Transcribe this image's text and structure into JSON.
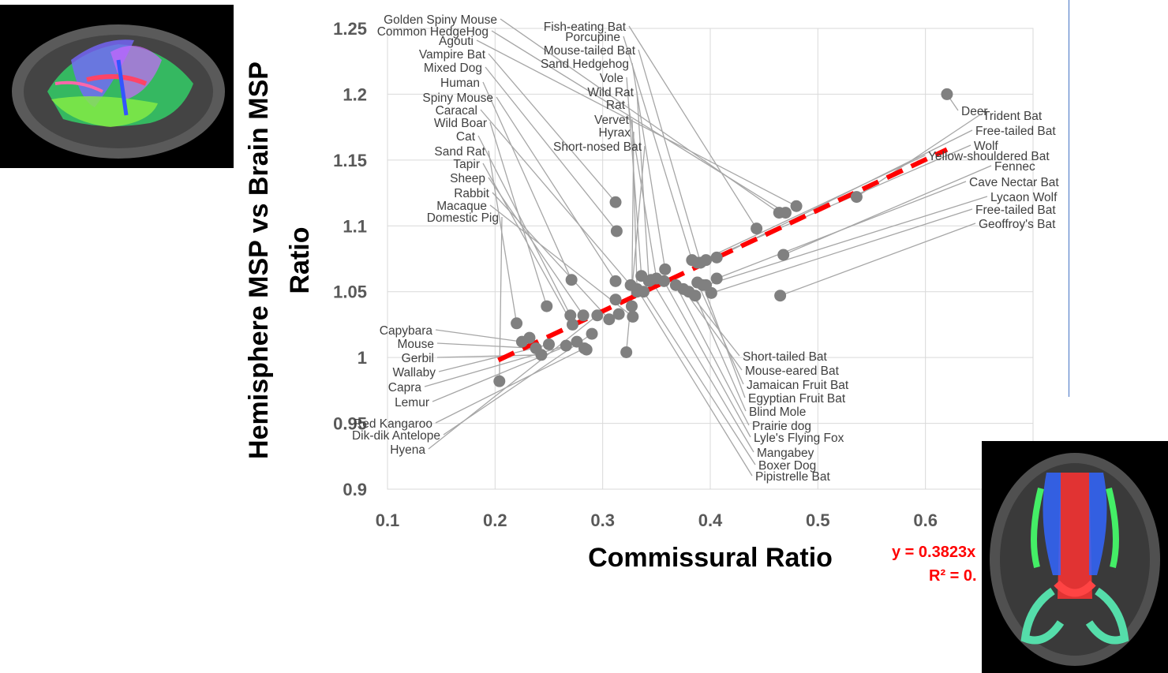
{
  "chart_data": {
    "type": "scatter",
    "title": "",
    "xlabel": "Commissural Ratio",
    "ylabel_line1": "Hemisphere MSP vs Brain MSP",
    "ylabel_line2": "Ratio",
    "xlim": [
      0.1,
      0.7
    ],
    "ylim": [
      0.9,
      1.25
    ],
    "x_ticks": [
      "0.1",
      "0.2",
      "0.3",
      "0.4",
      "0.5",
      "0.6"
    ],
    "y_ticks": [
      "0.9",
      "0.95",
      "1",
      "1.05",
      "1.1",
      "1.15",
      "1.2",
      "1.25"
    ],
    "grid": true,
    "point_color": "#808080",
    "trendline": {
      "style": "dashed",
      "color": "#ff0000",
      "x_range": [
        0.203,
        0.62
      ],
      "y_range": [
        0.998,
        1.158
      ],
      "equation": "y = 0.3823x",
      "r_squared": "R² = 0."
    },
    "points": [
      {
        "name": "Golden Spiny Mouse",
        "x": 0.464,
        "y": 1.11
      },
      {
        "name": "Common HedgeHog",
        "x": 0.47,
        "y": 1.11
      },
      {
        "name": "Agouti",
        "x": 0.48,
        "y": 1.115
      },
      {
        "name": "Vampire Bat",
        "x": 0.312,
        "y": 1.118
      },
      {
        "name": "Mixed Dog",
        "x": 0.313,
        "y": 1.096
      },
      {
        "name": "Human",
        "x": 0.271,
        "y": 1.059
      },
      {
        "name": "Spiny Mouse",
        "x": 0.312,
        "y": 1.058
      },
      {
        "name": "Caracal",
        "x": 0.326,
        "y": 1.055
      },
      {
        "name": "Wild Boar",
        "x": 0.248,
        "y": 1.039
      },
      {
        "name": "Cat",
        "x": 0.27,
        "y": 1.032
      },
      {
        "name": "Sand Rat",
        "x": 0.22,
        "y": 1.026
      },
      {
        "name": "Tapir",
        "x": 0.272,
        "y": 1.025
      },
      {
        "name": "Sheep",
        "x": 0.282,
        "y": 1.032
      },
      {
        "name": "Rabbit",
        "x": 0.306,
        "y": 1.029
      },
      {
        "name": "Macaque",
        "x": 0.328,
        "y": 1.031
      },
      {
        "name": "Domestic Pig",
        "x": 0.204,
        "y": 0.982
      },
      {
        "name": "Fish-eating Bat",
        "x": 0.443,
        "y": 1.098
      },
      {
        "name": "Porcupine",
        "x": 0.383,
        "y": 1.074
      },
      {
        "name": "Mouse-tailed Bat",
        "x": 0.391,
        "y": 1.072
      },
      {
        "name": "Sand Hedgehog",
        "x": 0.358,
        "y": 1.067
      },
      {
        "name": "Vole",
        "x": 0.336,
        "y": 1.062
      },
      {
        "name": "Wild Rat",
        "x": 0.343,
        "y": 1.058
      },
      {
        "name": "Rat",
        "x": 0.35,
        "y": 1.06
      },
      {
        "name": "Vervet",
        "x": 0.332,
        "y": 1.05
      },
      {
        "name": "Hyrax",
        "x": 0.327,
        "y": 1.039
      },
      {
        "name": "Short-nosed Bat",
        "x": 0.322,
        "y": 1.004
      },
      {
        "name": "Deer",
        "x": 0.62,
        "y": 1.2
      },
      {
        "name": "Trident Bat",
        "x": 0.536,
        "y": 1.122
      },
      {
        "name": "Free-tailed Bat",
        "x": 0.406,
        "y": 1.076
      },
      {
        "name": "Wolf",
        "x": 0.396,
        "y": 1.074
      },
      {
        "name": "Yellow-shouldered Bat",
        "x": 0.388,
        "y": 1.072
      },
      {
        "name": "Fennec",
        "x": 0.468,
        "y": 1.078
      },
      {
        "name": "Cave Nectar Bat",
        "x": 0.406,
        "y": 1.06
      },
      {
        "name": "Lycaon Wolf",
        "x": 0.396,
        "y": 1.055
      },
      {
        "name": "Free-tailed Bat",
        "x": 0.401,
        "y": 1.049
      },
      {
        "name": "Geoffroy's Bat",
        "x": 0.465,
        "y": 1.047
      },
      {
        "name": "Capybara",
        "x": 0.225,
        "y": 1.012
      },
      {
        "name": "Mouse",
        "x": 0.238,
        "y": 1.007
      },
      {
        "name": "Gerbil",
        "x": 0.243,
        "y": 1.002
      },
      {
        "name": "Wallaby",
        "x": 0.25,
        "y": 1.01
      },
      {
        "name": "Capra",
        "x": 0.266,
        "y": 1.009
      },
      {
        "name": "Lemur",
        "x": 0.276,
        "y": 1.012
      },
      {
        "name": "Red Kangaroo",
        "x": 0.283,
        "y": 1.007
      },
      {
        "name": "Dik-dik Antelope",
        "x": 0.29,
        "y": 1.018
      },
      {
        "name": "Hyena",
        "x": 0.295,
        "y": 1.032
      },
      {
        "name": "Short-tailed Bat",
        "x": 0.38,
        "y": 1.05
      },
      {
        "name": "Mouse-eared Bat",
        "x": 0.375,
        "y": 1.052
      },
      {
        "name": "Jamaican Fruit Bat",
        "x": 0.388,
        "y": 1.057
      },
      {
        "name": "Egyptian Fruit Bat",
        "x": 0.393,
        "y": 1.055
      },
      {
        "name": "Blind Mole",
        "x": 0.386,
        "y": 1.047
      },
      {
        "name": "Prairie dog",
        "x": 0.368,
        "y": 1.055
      },
      {
        "name": "Lyle's Flying Fox",
        "x": 0.357,
        "y": 1.058
      },
      {
        "name": "Mangabey",
        "x": 0.345,
        "y": 1.059
      },
      {
        "name": "Boxer Dog",
        "x": 0.338,
        "y": 1.05
      },
      {
        "name": "Pipistrelle Bat",
        "x": 0.332,
        "y": 1.052
      },
      {
        "name": "",
        "x": 0.232,
        "y": 1.015
      },
      {
        "name": "",
        "x": 0.312,
        "y": 1.044
      },
      {
        "name": "",
        "x": 0.315,
        "y": 1.033
      },
      {
        "name": "",
        "x": 0.285,
        "y": 1.006
      }
    ]
  },
  "images": {
    "sagittal": "brain-sagittal-tractography",
    "axial": "brain-axial-tractography"
  }
}
